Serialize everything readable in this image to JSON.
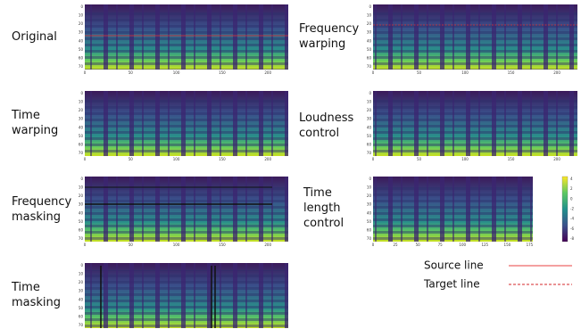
{
  "panels": [
    {
      "label": [
        "Original"
      ],
      "xticks": [
        "0",
        "50",
        "100",
        "150",
        "200"
      ],
      "yticks": [
        "0",
        "10",
        "20",
        "30",
        "40",
        "50",
        "60",
        "70"
      ]
    },
    {
      "label": [
        "Frequency",
        "warping"
      ],
      "xticks": [
        "0",
        "50",
        "100",
        "150",
        "200"
      ],
      "yticks": [
        "0",
        "10",
        "20",
        "30",
        "40",
        "50",
        "60",
        "70"
      ]
    },
    {
      "label": [
        "Time",
        "warping"
      ],
      "xticks": [
        "0",
        "50",
        "100",
        "150",
        "200"
      ],
      "yticks": [
        "0",
        "10",
        "20",
        "30",
        "40",
        "50",
        "60",
        "70"
      ]
    },
    {
      "label": [
        "Loudness",
        "control"
      ],
      "xticks": [
        "0",
        "50",
        "100",
        "150",
        "200"
      ],
      "yticks": [
        "0",
        "10",
        "20",
        "30",
        "40",
        "50",
        "60",
        "70"
      ]
    },
    {
      "label": [
        "Frequency",
        "masking"
      ],
      "xticks": [
        "0",
        "50",
        "100",
        "150",
        "200"
      ],
      "yticks": [
        "0",
        "10",
        "20",
        "30",
        "40",
        "50",
        "60",
        "70"
      ]
    },
    {
      "label": [
        "Time",
        "length",
        "control"
      ],
      "xticks": [
        "0",
        "25",
        "50",
        "75",
        "100",
        "125",
        "150",
        "175"
      ],
      "yticks": [
        "0",
        "10",
        "20",
        "30",
        "40",
        "50",
        "60",
        "70"
      ]
    },
    {
      "label": [
        "Time",
        "masking"
      ],
      "xticks": [
        "0",
        "50",
        "100",
        "150",
        "200"
      ],
      "yticks": [
        "0",
        "10",
        "20",
        "30",
        "40",
        "50",
        "60",
        "70"
      ]
    }
  ],
  "colorbar": {
    "ticks": [
      "4",
      "2",
      "0",
      "-2",
      "-4",
      "-6",
      "-8"
    ]
  },
  "legend": {
    "source": "Source line",
    "target": "Target line"
  }
}
